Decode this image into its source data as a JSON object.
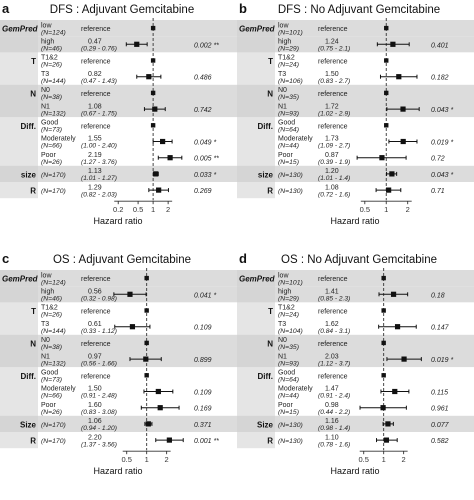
{
  "chart_data": [
    {
      "type": "forest",
      "panel_letter": "a",
      "title": "DFS : Adjuvant Gemcitabine",
      "xlabel": "Hazard ratio",
      "xscale": "log",
      "xlim": [
        0.15,
        5
      ],
      "xticks": [
        0.2,
        0.5,
        1,
        2
      ],
      "xtick_labels": [
        "0.2",
        "0.5",
        "1",
        "2"
      ],
      "reference_line": 1,
      "rows": [
        {
          "var": "GemPred",
          "level": "low",
          "n": "(N=124)",
          "est": null,
          "hr": "reference",
          "ci": "",
          "p": ""
        },
        {
          "var": "",
          "level": "high",
          "n": "(N=46)",
          "est": 0.47,
          "lo": 0.29,
          "hi": 0.76,
          "hr": "0.47",
          "ci": "(0.29 - 0.76)",
          "p": "0.002 **"
        },
        {
          "var": "T",
          "level": "T1&2",
          "n": "(N=26)",
          "est": null,
          "hr": "reference",
          "ci": "",
          "p": ""
        },
        {
          "var": "",
          "level": "T3",
          "n": "(N=144)",
          "est": 0.82,
          "lo": 0.47,
          "hi": 1.43,
          "hr": "0.82",
          "ci": "(0.47 - 1.43)",
          "p": "0.486"
        },
        {
          "var": "N",
          "level": "N0",
          "n": "(N=38)",
          "est": null,
          "hr": "reference",
          "ci": "",
          "p": ""
        },
        {
          "var": "",
          "level": "N1",
          "n": "(N=132)",
          "est": 1.08,
          "lo": 0.67,
          "hi": 1.75,
          "hr": "1.08",
          "ci": "(0.67 - 1.75)",
          "p": "0.742"
        },
        {
          "var": "Diff.",
          "level": "Good",
          "n": "(N=73)",
          "est": null,
          "hr": "reference",
          "ci": "",
          "p": ""
        },
        {
          "var": "",
          "level": "Moderately",
          "n": "(N=66)",
          "est": 1.55,
          "lo": 1.0,
          "hi": 2.4,
          "hr": "1.55",
          "ci": "(1.00 - 2.40)",
          "p": "0.049 *"
        },
        {
          "var": "",
          "level": "Poor",
          "n": "(N=26)",
          "est": 2.19,
          "lo": 1.27,
          "hi": 3.76,
          "hr": "2.19",
          "ci": "(1.27 - 3.76)",
          "p": "0.005 **"
        },
        {
          "var": "size",
          "level": "",
          "n": "(N=170)",
          "est": 1.13,
          "lo": 1.01,
          "hi": 1.27,
          "hr": "1.13",
          "ci": "(1.01 - 1.27)",
          "p": "0.033 *"
        },
        {
          "var": "R",
          "level": "",
          "n": "(N=170)",
          "est": 1.29,
          "lo": 0.82,
          "hi": 2.03,
          "hr": "1.29",
          "ci": "(0.82 - 2.03)",
          "p": "0.269"
        }
      ]
    },
    {
      "type": "forest",
      "panel_letter": "b",
      "title": "DFS : No Adjuvant Gemcitabine",
      "xlabel": "Hazard ratio",
      "xscale": "log",
      "xlim": [
        0.3,
        3.5
      ],
      "xticks": [
        0.5,
        1,
        2
      ],
      "xtick_labels": [
        "0.5",
        "1",
        "2"
      ],
      "reference_line": 1,
      "rows": [
        {
          "var": "GemPred",
          "level": "low",
          "n": "(N=101)",
          "est": null,
          "hr": "reference",
          "ci": "",
          "p": ""
        },
        {
          "var": "",
          "level": "high",
          "n": "(N=29)",
          "est": 1.24,
          "lo": 0.75,
          "hi": 2.1,
          "hr": "1.24",
          "ci": "(0.75 - 2.1)",
          "p": "0.401"
        },
        {
          "var": "T",
          "level": "T1&2",
          "n": "(N=24)",
          "est": null,
          "hr": "reference",
          "ci": "",
          "p": ""
        },
        {
          "var": "",
          "level": "T3",
          "n": "(N=106)",
          "est": 1.5,
          "lo": 0.83,
          "hi": 2.7,
          "hr": "1.50",
          "ci": "(0.83 - 2.7)",
          "p": "0.182"
        },
        {
          "var": "N",
          "level": "N0",
          "n": "(N=35)",
          "est": null,
          "hr": "reference",
          "ci": "",
          "p": ""
        },
        {
          "var": "",
          "level": "N1",
          "n": "(N=93)",
          "est": 1.72,
          "lo": 1.02,
          "hi": 2.9,
          "hr": "1.72",
          "ci": "(1.02 - 2.9)",
          "p": "0.043 *"
        },
        {
          "var": "Diff.",
          "level": "Good",
          "n": "(N=64)",
          "est": null,
          "hr": "reference",
          "ci": "",
          "p": ""
        },
        {
          "var": "",
          "level": "Moderately",
          "n": "(N=44)",
          "est": 1.73,
          "lo": 1.09,
          "hi": 2.7,
          "hr": "1.73",
          "ci": "(1.09 - 2.7)",
          "p": "0.019 *"
        },
        {
          "var": "",
          "level": "Poor",
          "n": "(N=15)",
          "est": 0.87,
          "lo": 0.39,
          "hi": 1.9,
          "hr": "0.87",
          "ci": "(0.39 - 1.9)",
          "p": "0.72"
        },
        {
          "var": "size",
          "level": "",
          "n": "(N=130)",
          "est": 1.2,
          "lo": 1.01,
          "hi": 1.4,
          "hr": "1.20",
          "ci": "(1.01 - 1.4)",
          "p": "0.043 *"
        },
        {
          "var": "R",
          "level": "",
          "n": "(N=130)",
          "est": 1.08,
          "lo": 0.72,
          "hi": 1.6,
          "hr": "1.08",
          "ci": "(0.72 - 1.6)",
          "p": "0.71"
        }
      ]
    },
    {
      "type": "forest",
      "panel_letter": "c",
      "title": "OS : Adjuvant Gemcitabine",
      "xlabel": "Hazard ratio",
      "xscale": "log",
      "xlim": [
        0.3,
        4.2
      ],
      "xticks": [
        0.5,
        1,
        2
      ],
      "xtick_labels": [
        "0.5",
        "1",
        "2"
      ],
      "reference_line": 1,
      "rows": [
        {
          "var": "GemPred",
          "level": "low",
          "n": "(N=124)",
          "est": null,
          "hr": "reference",
          "ci": "",
          "p": ""
        },
        {
          "var": "",
          "level": "high",
          "n": "(N=46)",
          "est": 0.56,
          "lo": 0.32,
          "hi": 0.98,
          "hr": "0.56",
          "ci": "(0.32 - 0.98)",
          "p": "0.041 *"
        },
        {
          "var": "T",
          "level": "T1&2",
          "n": "(N=26)",
          "est": null,
          "hr": "reference",
          "ci": "",
          "p": ""
        },
        {
          "var": "",
          "level": "T3",
          "n": "(N=144)",
          "est": 0.61,
          "lo": 0.33,
          "hi": 1.12,
          "hr": "0.61",
          "ci": "(0.33 - 1.12)",
          "p": "0.109"
        },
        {
          "var": "N",
          "level": "N0",
          "n": "(N=38)",
          "est": null,
          "hr": "reference",
          "ci": "",
          "p": ""
        },
        {
          "var": "",
          "level": "N1",
          "n": "(N=132)",
          "est": 0.97,
          "lo": 0.56,
          "hi": 1.66,
          "hr": "0.97",
          "ci": "(0.56 - 1.66)",
          "p": "0.899"
        },
        {
          "var": "Diff.",
          "level": "Good",
          "n": "(N=73)",
          "est": null,
          "hr": "reference",
          "ci": "",
          "p": ""
        },
        {
          "var": "",
          "level": "Moderately",
          "n": "(N=66)",
          "est": 1.5,
          "lo": 0.91,
          "hi": 2.48,
          "hr": "1.50",
          "ci": "(0.91 - 2.48)",
          "p": "0.109"
        },
        {
          "var": "",
          "level": "Poor",
          "n": "(N=26)",
          "est": 1.6,
          "lo": 0.83,
          "hi": 3.08,
          "hr": "1.60",
          "ci": "(0.83 - 3.08)",
          "p": "0.169"
        },
        {
          "var": "Size",
          "level": "",
          "n": "(N=170)",
          "est": 1.06,
          "lo": 0.94,
          "hi": 1.2,
          "hr": "1.06",
          "ci": "(0.94 - 1.20)",
          "p": "0.371"
        },
        {
          "var": "R",
          "level": "",
          "n": "(N=170)",
          "est": 2.2,
          "lo": 1.37,
          "hi": 3.56,
          "hr": "2.20",
          "ci": "(1.37 - 3.56)",
          "p": "0.001 **"
        }
      ]
    },
    {
      "type": "forest",
      "panel_letter": "d",
      "title": "OS : No Adjuvant Gemcitabine",
      "xlabel": "Hazard ratio",
      "xscale": "log",
      "xlim": [
        0.3,
        4.2
      ],
      "xticks": [
        0.5,
        1,
        2
      ],
      "xtick_labels": [
        "0.5",
        "1",
        "2"
      ],
      "reference_line": 1,
      "rows": [
        {
          "var": "GemPred",
          "level": "low",
          "n": "(N=101)",
          "est": null,
          "hr": "reference",
          "ci": "",
          "p": ""
        },
        {
          "var": "",
          "level": "high",
          "n": "(N=29)",
          "est": 1.41,
          "lo": 0.85,
          "hi": 2.3,
          "hr": "1.41",
          "ci": "(0.85 - 2.3)",
          "p": "0.18"
        },
        {
          "var": "T",
          "level": "T1&2",
          "n": "(N=24)",
          "est": null,
          "hr": "reference",
          "ci": "",
          "p": ""
        },
        {
          "var": "",
          "level": "T3",
          "n": "(N=104)",
          "est": 1.62,
          "lo": 0.84,
          "hi": 3.1,
          "hr": "1.62",
          "ci": "(0.84 - 3.1)",
          "p": "0.147"
        },
        {
          "var": "N",
          "level": "N0",
          "n": "(N=35)",
          "est": null,
          "hr": "reference",
          "ci": "",
          "p": ""
        },
        {
          "var": "",
          "level": "N1",
          "n": "(N=93)",
          "est": 2.03,
          "lo": 1.12,
          "hi": 3.7,
          "hr": "2.03",
          "ci": "(1.12 - 3.7)",
          "p": "0.019 *"
        },
        {
          "var": "Diff.",
          "level": "Good",
          "n": "(N=64)",
          "est": null,
          "hr": "reference",
          "ci": "",
          "p": ""
        },
        {
          "var": "",
          "level": "Moderately",
          "n": "(N=44)",
          "est": 1.47,
          "lo": 0.91,
          "hi": 2.4,
          "hr": "1.47",
          "ci": "(0.91 - 2.4)",
          "p": "0.115"
        },
        {
          "var": "",
          "level": "Poor",
          "n": "(N=15)",
          "est": 0.98,
          "lo": 0.44,
          "hi": 2.2,
          "hr": "0.98",
          "ci": "(0.44 - 2.2)",
          "p": "0.961"
        },
        {
          "var": "Size",
          "level": "",
          "n": "(N=130)",
          "est": 1.16,
          "lo": 0.98,
          "hi": 1.4,
          "hr": "1.16",
          "ci": "(0.98 - 1.4)",
          "p": "0.077"
        },
        {
          "var": "R",
          "level": "",
          "n": "(N=130)",
          "est": 1.1,
          "lo": 0.78,
          "hi": 1.6,
          "hr": "1.10",
          "ci": "(0.78 - 1.6)",
          "p": "0.582"
        }
      ]
    }
  ]
}
